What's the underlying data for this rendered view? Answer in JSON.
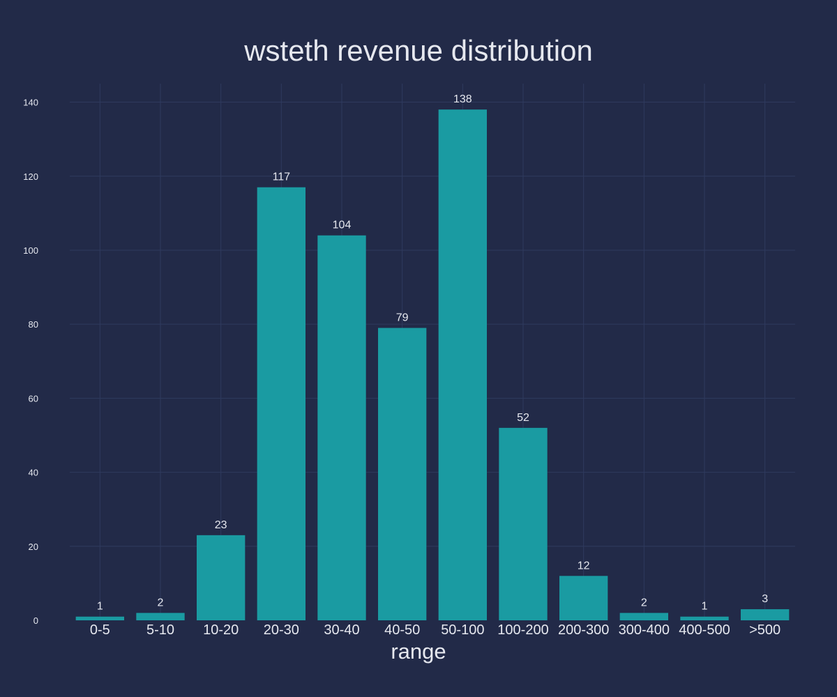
{
  "chart_data": {
    "type": "bar",
    "title": "wsteth revenue distribution",
    "xlabel": "range",
    "ylabel": "",
    "categories": [
      "0-5",
      "5-10",
      "10-20",
      "20-30",
      "30-40",
      "40-50",
      "50-100",
      "100-200",
      "200-300",
      "300-400",
      "400-500",
      ">500"
    ],
    "values": [
      1,
      2,
      23,
      117,
      104,
      79,
      138,
      52,
      12,
      2,
      1,
      3
    ],
    "ylim": [
      0,
      145
    ],
    "yticks": [
      0,
      20,
      40,
      60,
      80,
      100,
      120,
      140
    ],
    "grid": true,
    "data_labels": true,
    "colors": {
      "background": "#222a48",
      "bar": "#1a9ba2",
      "grid": "#2f3a5e",
      "text": "#e6e8ef"
    }
  }
}
